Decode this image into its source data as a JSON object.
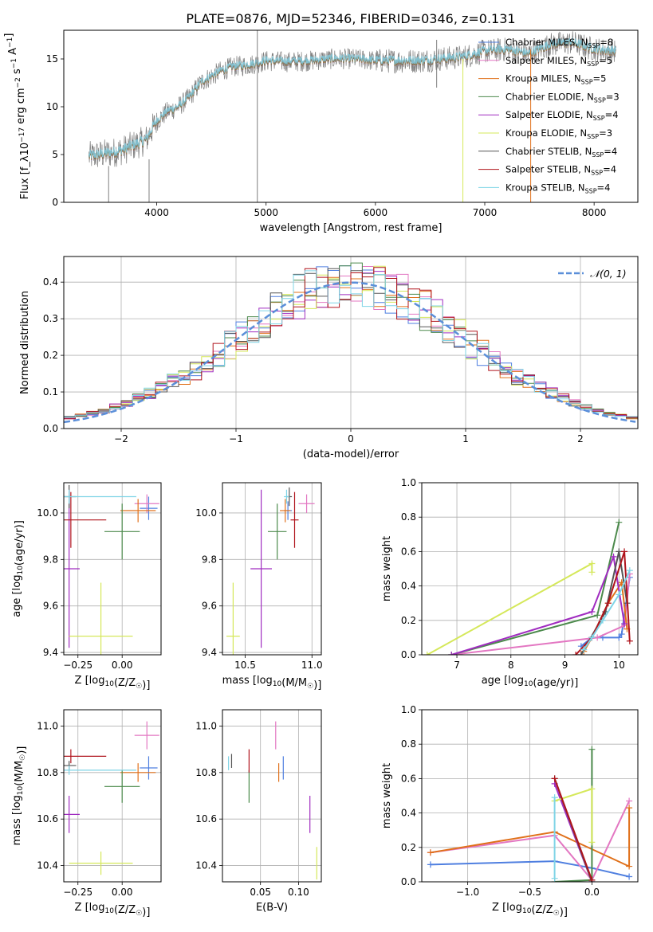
{
  "title": "PLATE=0876, MJD=52346, FIBERID=0346, z=0.131",
  "colors": {
    "chabrier_miles": "#4f7fe0",
    "salpeter_miles": "#e377c2",
    "kroupa_miles": "#e0701a",
    "chabrier_elodie": "#4c8a4c",
    "salpeter_elodie": "#a02cc0",
    "kroupa_elodie": "#d5e85a",
    "chabrier_stelib": "#555555",
    "salpeter_stelib": "#b0141c",
    "kroupa_stelib": "#7fd4e6",
    "gaussian": "#5b8fd9",
    "grid": "#b0b0b0"
  },
  "chart_data": [
    {
      "id": "spectrum",
      "type": "line",
      "xlabel": "wavelength [Angstrom, rest frame]",
      "ylabel": "Flux [f_λ10^-17 erg cm^-2 s^-1 A^-1]",
      "xlim": [
        3150,
        8400
      ],
      "ylim": [
        0,
        18
      ],
      "xticks": [
        "4000",
        "5000",
        "6000",
        "7000",
        "8000"
      ],
      "yticks": [
        "0",
        "5",
        "10",
        "15"
      ],
      "grid": false,
      "legend_position": "top-right",
      "legend": [
        "Chabrier MILES, N_SSP=8",
        "Salpeter MILES, N_SSP=5",
        "Kroupa MILES, N_SSP=5",
        "Chabrier ELODIE, N_SSP=3",
        "Salpeter ELODIE, N_SSP=4",
        "Kroupa ELODIE, N_SSP=3",
        "Chabrier STELIB, N_SSP=4",
        "Salpeter STELIB, N_SSP=4",
        "Kroupa STELIB, N_SSP=4"
      ],
      "continuum": {
        "x": [
          3380,
          3600,
          3700,
          3800,
          3900,
          4000,
          4100,
          4200,
          4300,
          4400,
          4500,
          4600,
          4700,
          4800,
          4900,
          5000,
          5200,
          5400,
          5600,
          5800,
          6000,
          6200,
          6400,
          6600,
          6800,
          7000,
          7200,
          7400,
          7600,
          7800,
          8000,
          8200
        ],
        "y": [
          4.8,
          5.2,
          5.5,
          6.0,
          6.5,
          8.5,
          9.5,
          10.0,
          11.0,
          12.5,
          13.2,
          13.8,
          14.2,
          14.3,
          14.5,
          14.8,
          14.7,
          14.8,
          15.0,
          15.0,
          14.8,
          14.8,
          14.8,
          15.0,
          15.2,
          15.8,
          16.0,
          15.5,
          16.5,
          16.7,
          16.0,
          15.8
        ]
      }
    },
    {
      "id": "residuals",
      "type": "line",
      "xlabel": "(data-model)/error",
      "ylabel": "Normed distribution",
      "xlim": [
        -2.5,
        2.5
      ],
      "ylim": [
        0,
        0.47
      ],
      "xticks": [
        "−2",
        "−1",
        "0",
        "1",
        "2"
      ],
      "yticks": [
        "0.0",
        "0.1",
        "0.2",
        "0.3",
        "0.4"
      ],
      "grid": true,
      "legend_position": "top-right",
      "legend": [
        "𝒩(0, 1)"
      ],
      "bin_width": 0.1,
      "gaussian": {
        "mean": 0,
        "sigma": 1
      }
    },
    {
      "id": "age_vs_Z",
      "type": "scatter",
      "xlabel": "Z [log10(Z/Z☉)]",
      "ylabel": "age  [log10(age/yr)]",
      "xlim": [
        -0.33,
        0.22
      ],
      "ylim": [
        9.39,
        10.13
      ],
      "xticks": [
        "−0.25",
        "0.00"
      ],
      "yticks": [
        "9.4",
        "9.6",
        "9.8",
        "10.0"
      ],
      "grid": true,
      "points": [
        {
          "model": "chabrier_miles",
          "x": 0.15,
          "y": 10.02,
          "xerr": 0.05,
          "yerr": 0.05
        },
        {
          "model": "salpeter_miles",
          "x": 0.14,
          "y": 10.04,
          "xerr": 0.07,
          "yerr": 0.04
        },
        {
          "model": "kroupa_miles",
          "x": 0.09,
          "y": 10.01,
          "xerr": 0.1,
          "yerr": 0.05
        },
        {
          "model": "chabrier_elodie",
          "x": 0.0,
          "y": 9.92,
          "xerr": 0.1,
          "yerr": 0.12
        },
        {
          "model": "salpeter_elodie",
          "x": -0.3,
          "y": 9.76,
          "xerr": 0.06,
          "yerr": 0.34
        },
        {
          "model": "kroupa_elodie",
          "x": -0.12,
          "y": 9.47,
          "xerr": 0.18,
          "yerr": 0.23
        },
        {
          "model": "chabrier_stelib",
          "x": -0.3,
          "y": 10.07,
          "xerr": 0.04,
          "yerr": 0.05
        },
        {
          "model": "salpeter_stelib",
          "x": -0.29,
          "y": 9.97,
          "xerr": 0.2,
          "yerr": 0.12
        },
        {
          "model": "kroupa_stelib",
          "x": -0.3,
          "y": 10.07,
          "xerr": 0.38,
          "yerr": 0.03
        }
      ]
    },
    {
      "id": "age_vs_mass",
      "type": "scatter",
      "xlabel": "mass [log10(M/M☉)]",
      "ylabel": "",
      "xlim": [
        10.33,
        11.07
      ],
      "ylim": [
        9.39,
        10.13
      ],
      "xticks": [
        "10.5",
        "11.0"
      ],
      "yticks": [
        "9.4",
        "9.6",
        "9.8",
        "10.0"
      ],
      "grid": true,
      "points": [
        {
          "model": "chabrier_miles",
          "x": 10.82,
          "y": 10.01,
          "xerr": 0.03,
          "yerr": 0.04
        },
        {
          "model": "salpeter_miles",
          "x": 10.96,
          "y": 10.04,
          "xerr": 0.06,
          "yerr": 0.04
        },
        {
          "model": "kroupa_miles",
          "x": 10.8,
          "y": 10.01,
          "xerr": 0.04,
          "yerr": 0.05
        },
        {
          "model": "chabrier_elodie",
          "x": 10.74,
          "y": 9.92,
          "xerr": 0.07,
          "yerr": 0.12
        },
        {
          "model": "salpeter_elodie",
          "x": 10.62,
          "y": 9.76,
          "xerr": 0.08,
          "yerr": 0.34
        },
        {
          "model": "kroupa_elodie",
          "x": 10.41,
          "y": 9.47,
          "xerr": 0.05,
          "yerr": 0.23
        },
        {
          "model": "chabrier_stelib",
          "x": 10.83,
          "y": 10.07,
          "xerr": 0.02,
          "yerr": 0.04
        },
        {
          "model": "salpeter_stelib",
          "x": 10.87,
          "y": 9.97,
          "xerr": 0.03,
          "yerr": 0.12
        },
        {
          "model": "kroupa_stelib",
          "x": 10.81,
          "y": 10.07,
          "xerr": 0.02,
          "yerr": 0.03
        }
      ]
    },
    {
      "id": "weight_vs_age",
      "type": "line",
      "xlabel": "age  [log10(age/yr)]",
      "ylabel": "mass weight",
      "xlim": [
        6.35,
        10.35
      ],
      "ylim": [
        0,
        1.0
      ],
      "xticks": [
        "7",
        "8",
        "9",
        "10"
      ],
      "yticks": [
        "0.0",
        "0.2",
        "0.4",
        "0.6",
        "0.8",
        "1.0"
      ],
      "grid": true,
      "series": [
        {
          "model": "chabrier_miles",
          "x": [
            9.3,
            9.5,
            9.7,
            10.0,
            10.05,
            10.2
          ],
          "y": [
            0.05,
            0.1,
            0.1,
            0.1,
            0.12,
            0.45
          ]
        },
        {
          "model": "salpeter_miles",
          "x": [
            6.9,
            9.6,
            10.1,
            10.2
          ],
          "y": [
            0.0,
            0.1,
            0.17,
            0.47
          ]
        },
        {
          "model": "kroupa_miles",
          "x": [
            9.35,
            9.5,
            9.8,
            10.05,
            10.15
          ],
          "y": [
            0.02,
            0.1,
            0.3,
            0.42,
            0.15
          ]
        },
        {
          "model": "chabrier_elodie",
          "x": [
            6.9,
            9.6,
            10.0
          ],
          "y": [
            0.0,
            0.23,
            0.77
          ]
        },
        {
          "model": "salpeter_elodie",
          "x": [
            6.9,
            9.5,
            9.9,
            10.1
          ],
          "y": [
            0.0,
            0.25,
            0.57,
            0.18
          ]
        },
        {
          "model": "kroupa_elodie",
          "x": [
            6.45,
            9.5,
            9.5
          ],
          "y": [
            0.0,
            0.53,
            0.48
          ]
        },
        {
          "model": "chabrier_stelib",
          "x": [
            9.3,
            9.75,
            10.0,
            10.15
          ],
          "y": [
            0.0,
            0.25,
            0.6,
            0.3
          ]
        },
        {
          "model": "salpeter_stelib",
          "x": [
            9.2,
            9.5,
            9.8,
            10.1,
            10.2
          ],
          "y": [
            0.0,
            0.1,
            0.3,
            0.6,
            0.08
          ]
        },
        {
          "model": "kroupa_stelib",
          "x": [
            9.35,
            9.5,
            9.7,
            10.0,
            10.2
          ],
          "y": [
            0.03,
            0.1,
            0.2,
            0.35,
            0.49
          ]
        }
      ]
    },
    {
      "id": "mass_vs_Z",
      "type": "scatter",
      "xlabel": "Z [log10(Z/Z☉)]",
      "ylabel": "mass [log10(M/M☉)]",
      "xlim": [
        -0.33,
        0.22
      ],
      "ylim": [
        10.33,
        11.07
      ],
      "xticks": [
        "−0.25",
        "0.00"
      ],
      "yticks": [
        "10.4",
        "10.6",
        "10.8",
        "11.0"
      ],
      "grid": true,
      "points": [
        {
          "model": "chabrier_miles",
          "x": 0.15,
          "y": 10.82,
          "xerr": 0.05,
          "yerr": 0.05
        },
        {
          "model": "salpeter_miles",
          "x": 0.14,
          "y": 10.96,
          "xerr": 0.07,
          "yerr": 0.06
        },
        {
          "model": "kroupa_miles",
          "x": 0.09,
          "y": 10.8,
          "xerr": 0.1,
          "yerr": 0.04
        },
        {
          "model": "chabrier_elodie",
          "x": 0.0,
          "y": 10.74,
          "xerr": 0.1,
          "yerr": 0.07
        },
        {
          "model": "salpeter_elodie",
          "x": -0.3,
          "y": 10.62,
          "xerr": 0.06,
          "yerr": 0.08
        },
        {
          "model": "kroupa_elodie",
          "x": -0.12,
          "y": 10.41,
          "xerr": 0.18,
          "yerr": 0.05
        },
        {
          "model": "chabrier_stelib",
          "x": -0.3,
          "y": 10.83,
          "xerr": 0.04,
          "yerr": 0.02
        },
        {
          "model": "salpeter_stelib",
          "x": -0.29,
          "y": 10.87,
          "xerr": 0.2,
          "yerr": 0.03
        },
        {
          "model": "kroupa_stelib",
          "x": -0.3,
          "y": 10.81,
          "xerr": 0.38,
          "yerr": 0.02
        }
      ]
    },
    {
      "id": "mass_vs_ebv",
      "type": "scatter",
      "xlabel": "E(B-V)",
      "ylabel": "",
      "xlim": [
        0.0,
        0.13
      ],
      "ylim": [
        10.33,
        11.07
      ],
      "xticks": [
        "0.05",
        "0.10"
      ],
      "yticks": [
        "10.4",
        "10.6",
        "10.8",
        "11.0"
      ],
      "grid": true,
      "points": [
        {
          "model": "chabrier_miles",
          "x": 0.08,
          "y": 10.82,
          "xerr": 0.0,
          "yerr": 0.05
        },
        {
          "model": "salpeter_miles",
          "x": 0.07,
          "y": 10.96,
          "xerr": 0.0,
          "yerr": 0.06
        },
        {
          "model": "kroupa_miles",
          "x": 0.074,
          "y": 10.8,
          "xerr": 0.0,
          "yerr": 0.04
        },
        {
          "model": "chabrier_elodie",
          "x": 0.035,
          "y": 10.74,
          "xerr": 0.0,
          "yerr": 0.07
        },
        {
          "model": "salpeter_elodie",
          "x": 0.115,
          "y": 10.62,
          "xerr": 0.0,
          "yerr": 0.08
        },
        {
          "model": "kroupa_elodie",
          "x": 0.124,
          "y": 10.41,
          "xerr": 0.0,
          "yerr": 0.07
        },
        {
          "model": "chabrier_stelib",
          "x": 0.012,
          "y": 10.85,
          "xerr": 0.0,
          "yerr": 0.03
        },
        {
          "model": "salpeter_stelib",
          "x": 0.035,
          "y": 10.85,
          "xerr": 0.0,
          "yerr": 0.05
        },
        {
          "model": "kroupa_stelib",
          "x": 0.008,
          "y": 10.84,
          "xerr": 0.0,
          "yerr": 0.03
        }
      ]
    },
    {
      "id": "weight_vs_Z",
      "type": "line",
      "xlabel": "Z [log10(Z/Z☉)]",
      "ylabel": "mass weight",
      "xlim": [
        -1.37,
        0.37
      ],
      "ylim": [
        0,
        1.0
      ],
      "xticks": [
        "−1.0",
        "−0.5",
        "0.0"
      ],
      "yticks": [
        "0.0",
        "0.2",
        "0.4",
        "0.6",
        "0.8",
        "1.0"
      ],
      "grid": true,
      "series": [
        {
          "model": "chabrier_miles",
          "x": [
            -1.3,
            -0.3,
            0.0,
            0.3
          ],
          "y": [
            0.1,
            0.12,
            0.08,
            0.03
          ]
        },
        {
          "model": "salpeter_miles",
          "x": [
            -1.3,
            -0.3,
            0.0,
            0.3
          ],
          "y": [
            0.17,
            0.27,
            0.01,
            0.47
          ]
        },
        {
          "model": "kroupa_miles",
          "x": [
            -1.3,
            -0.3,
            0.3,
            0.3
          ],
          "y": [
            0.17,
            0.29,
            0.09,
            0.43
          ]
        },
        {
          "model": "chabrier_elodie",
          "x": [
            -0.3,
            0.0,
            0.0
          ],
          "y": [
            0.0,
            0.01,
            0.77
          ]
        },
        {
          "model": "salpeter_elodie",
          "x": [
            -0.3,
            0.0
          ],
          "y": [
            0.57,
            0.0
          ]
        },
        {
          "model": "kroupa_elodie",
          "x": [
            -0.3,
            0.0,
            0.0
          ],
          "y": [
            0.47,
            0.54,
            0.23
          ]
        },
        {
          "model": "chabrier_stelib",
          "x": [
            -0.3,
            0.0
          ],
          "y": [
            0.6,
            0.0
          ]
        },
        {
          "model": "salpeter_stelib",
          "x": [
            -0.3,
            0.0
          ],
          "y": [
            0.6,
            0.01
          ]
        },
        {
          "model": "kroupa_stelib",
          "x": [
            -0.3,
            -0.3
          ],
          "y": [
            0.49,
            0.02
          ]
        }
      ]
    }
  ]
}
